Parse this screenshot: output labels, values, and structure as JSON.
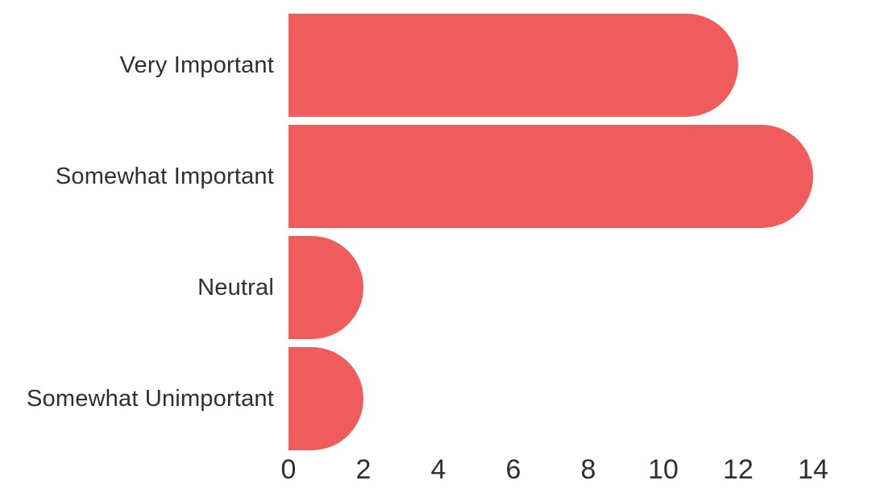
{
  "chart_data": {
    "type": "bar",
    "orientation": "horizontal",
    "title": "",
    "xlabel": "",
    "ylabel": "",
    "categories": [
      "Very Important",
      "Somewhat Important",
      "Neutral",
      "Somewhat Unimportant"
    ],
    "values": [
      12,
      14,
      2,
      2
    ],
    "xlim": [
      0,
      14
    ],
    "xticks": [
      0,
      2,
      4,
      6,
      8,
      10,
      12,
      14
    ],
    "grid": false,
    "legend": false,
    "colors": {
      "bar": "#F05C5C",
      "category_label_text": "#2F2F2F",
      "axis_tick_text": "#2F2F2F",
      "background": "#FFFFFF"
    }
  }
}
